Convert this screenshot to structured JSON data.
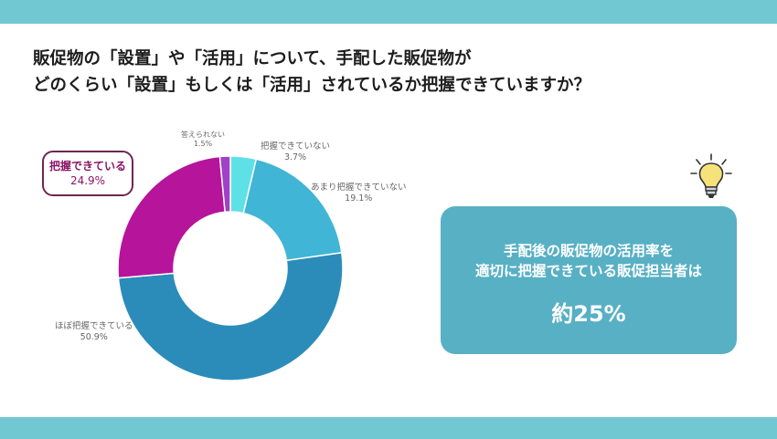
{
  "title": {
    "line1": "販促物の「設置」や「活用」について、手配した販促物が",
    "line2": "どのくらい「設置」もしくは「活用」されているか把握できていますか？"
  },
  "chart_data": {
    "type": "pie",
    "donut": true,
    "start": "top, clockwise",
    "categories": [
      "把握できていない",
      "あまり把握できていない",
      "ほぼ把握できている",
      "把握できている",
      "答えられない"
    ],
    "values": [
      3.7,
      19.1,
      50.9,
      24.9,
      1.5
    ],
    "value_labels": [
      "3.7%",
      "19.1%",
      "50.9%",
      "24.9%",
      "1.5%"
    ],
    "colors": [
      "#5ee1e6",
      "#40b5d5",
      "#2b8cba",
      "#b5149b",
      "#a040c6"
    ],
    "highlight": "把握できている"
  },
  "card": {
    "line1": "手配後の販促物の活用率を",
    "line2": "適切に把握できている販促担当者は",
    "big": "約25%"
  },
  "colors": {
    "band": "#72c8d2",
    "card": "#58b0c4",
    "callout_border": "#6b2852"
  },
  "icons": {
    "idea": "lightbulb-icon"
  }
}
